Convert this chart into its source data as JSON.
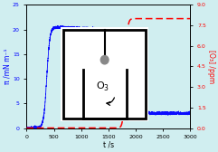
{
  "title": "",
  "xlabel": "t /s",
  "ylabel_left": "π /mN m⁻¹",
  "ylabel_right": "[O₃] /ppm",
  "xlim": [
    0,
    3000
  ],
  "ylim_left": [
    0,
    25
  ],
  "ylim_right": [
    0,
    9.0
  ],
  "yticks_left": [
    0,
    5,
    10,
    15,
    20,
    25
  ],
  "yticks_right": [
    0.0,
    1.5,
    3.0,
    4.5,
    6.0,
    7.5,
    9.0
  ],
  "xticks": [
    0,
    500,
    1000,
    1500,
    2000,
    2500,
    3000
  ],
  "blue_color": "#0000ff",
  "red_color": "#ff0000",
  "background": "#d0eef0"
}
